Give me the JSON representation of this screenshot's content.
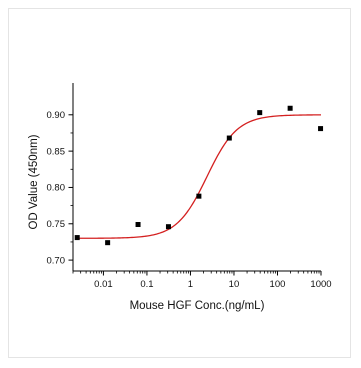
{
  "chart_data": {
    "type": "scatter",
    "title": "",
    "xlabel": "Mouse HGF Conc.(ng/mL)",
    "ylabel": "OD Value (450nm)",
    "xscale": "log",
    "xlim": [
      0.002,
      1000
    ],
    "ylim": [
      0.685,
      0.93
    ],
    "x_ticks": [
      0.01,
      0.1,
      1,
      10,
      100,
      1000
    ],
    "x_tick_labels": [
      "0.01",
      "0.1",
      "1",
      "10",
      "100",
      "1000"
    ],
    "y_ticks": [
      0.7,
      0.75,
      0.8,
      0.85,
      0.9
    ],
    "y_tick_labels": [
      "0.70",
      "0.75",
      "0.80",
      "0.85",
      "0.90"
    ],
    "grid": false,
    "legend": "none",
    "series": [
      {
        "kind": "points",
        "marker": "square",
        "color": "#000000",
        "x": [
          0.0025,
          0.0125,
          0.0625,
          0.3125,
          1.5625,
          7.8125,
          39.0625,
          195.3125,
          976.5625
        ],
        "y": [
          0.731,
          0.724,
          0.749,
          0.746,
          0.788,
          0.868,
          0.903,
          0.909,
          0.881
        ]
      },
      {
        "kind": "fit",
        "model": "4PL",
        "color": "#d42020",
        "bottom": 0.73,
        "top": 0.9,
        "ec50": 2.4,
        "hill": 1.25
      }
    ]
  }
}
